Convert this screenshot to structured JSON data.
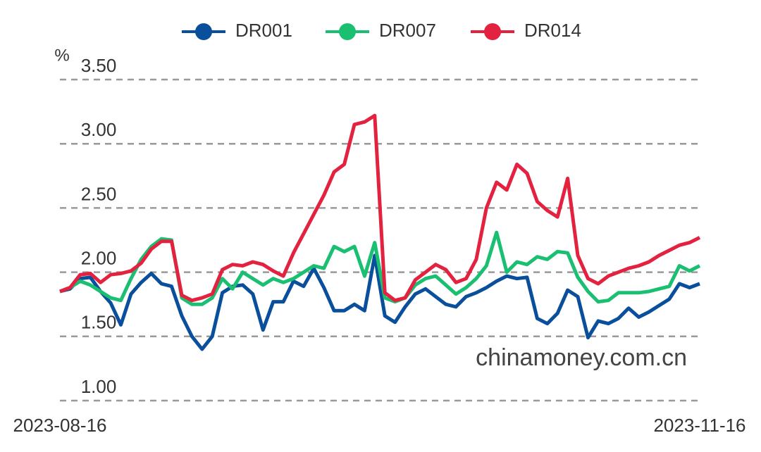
{
  "chart_data": {
    "type": "line",
    "y_label": "%",
    "annotation": "chinamoney.com.cn",
    "categories": [
      "2023-08-16",
      null,
      null,
      null,
      null,
      null,
      null,
      null,
      null,
      null,
      null,
      null,
      null,
      null,
      null,
      null,
      null,
      null,
      null,
      null,
      null,
      null,
      null,
      null,
      null,
      null,
      null,
      null,
      null,
      null,
      null,
      null,
      null,
      null,
      null,
      null,
      null,
      null,
      null,
      null,
      null,
      null,
      null,
      null,
      null,
      null,
      null,
      null,
      null,
      null,
      null,
      null,
      null,
      null,
      null,
      null,
      null,
      null,
      null,
      null,
      null,
      null,
      null,
      "2023-11-16"
    ],
    "series": [
      {
        "name": "DR001",
        "color": "#0a4f9c",
        "values": [
          1.85,
          1.87,
          1.95,
          1.96,
          1.85,
          1.76,
          1.59,
          1.83,
          1.92,
          1.99,
          1.91,
          1.89,
          1.66,
          1.5,
          1.4,
          1.5,
          1.84,
          1.89,
          1.9,
          1.83,
          1.55,
          1.77,
          1.77,
          1.93,
          1.89,
          2.03,
          1.88,
          1.7,
          1.7,
          1.75,
          1.7,
          2.13,
          1.66,
          1.61,
          1.73,
          1.83,
          1.87,
          1.81,
          1.75,
          1.73,
          1.81,
          1.84,
          1.88,
          1.93,
          1.97,
          1.95,
          1.96,
          1.64,
          1.6,
          1.68,
          1.86,
          1.81,
          1.49,
          1.62,
          1.6,
          1.64,
          1.72,
          1.65,
          1.69,
          1.74,
          1.79,
          1.91,
          1.88,
          1.91
        ]
      },
      {
        "name": "DR007",
        "color": "#1bbf72",
        "values": [
          1.85,
          1.88,
          1.93,
          1.9,
          1.85,
          1.8,
          1.78,
          1.95,
          2.1,
          2.2,
          2.26,
          2.25,
          1.8,
          1.75,
          1.75,
          1.8,
          1.95,
          1.87,
          2.0,
          1.95,
          1.9,
          1.95,
          1.92,
          1.95,
          2.0,
          2.05,
          2.03,
          2.2,
          2.16,
          2.2,
          1.97,
          2.23,
          1.8,
          1.77,
          1.8,
          1.9,
          1.95,
          1.97,
          1.9,
          1.83,
          1.88,
          1.95,
          2.05,
          2.31,
          2.0,
          2.08,
          2.06,
          2.12,
          2.1,
          2.16,
          2.15,
          1.96,
          1.85,
          1.77,
          1.78,
          1.84,
          1.84,
          1.84,
          1.85,
          1.87,
          1.89,
          2.05,
          2.01,
          2.05
        ]
      },
      {
        "name": "DR014",
        "color": "#e3223f",
        "values": [
          1.85,
          1.88,
          1.98,
          1.99,
          1.92,
          1.98,
          1.99,
          2.01,
          2.07,
          2.18,
          2.24,
          2.24,
          1.82,
          1.78,
          1.8,
          1.83,
          2.02,
          2.06,
          2.05,
          2.08,
          2.06,
          2.01,
          1.97,
          2.15,
          2.3,
          2.45,
          2.6,
          2.78,
          2.84,
          3.15,
          3.17,
          3.22,
          1.84,
          1.78,
          1.8,
          1.94,
          2.0,
          2.06,
          2.02,
          1.92,
          1.95,
          2.1,
          2.5,
          2.7,
          2.64,
          2.84,
          2.77,
          2.55,
          2.48,
          2.43,
          2.73,
          2.13,
          1.95,
          1.91,
          1.97,
          2.0,
          2.03,
          2.05,
          2.08,
          2.13,
          2.17,
          2.21,
          2.23,
          2.27
        ]
      }
    ],
    "ylim": [
      1.0,
      3.5
    ],
    "yticks": [
      {
        "value": 1.0,
        "label": "1.00"
      },
      {
        "value": 1.5,
        "label": "1.50"
      },
      {
        "value": 2.0,
        "label": "2.00"
      },
      {
        "value": 2.5,
        "label": "2.50"
      },
      {
        "value": 3.0,
        "label": "3.00"
      },
      {
        "value": 3.5,
        "label": "3.50"
      }
    ],
    "grid": true
  }
}
